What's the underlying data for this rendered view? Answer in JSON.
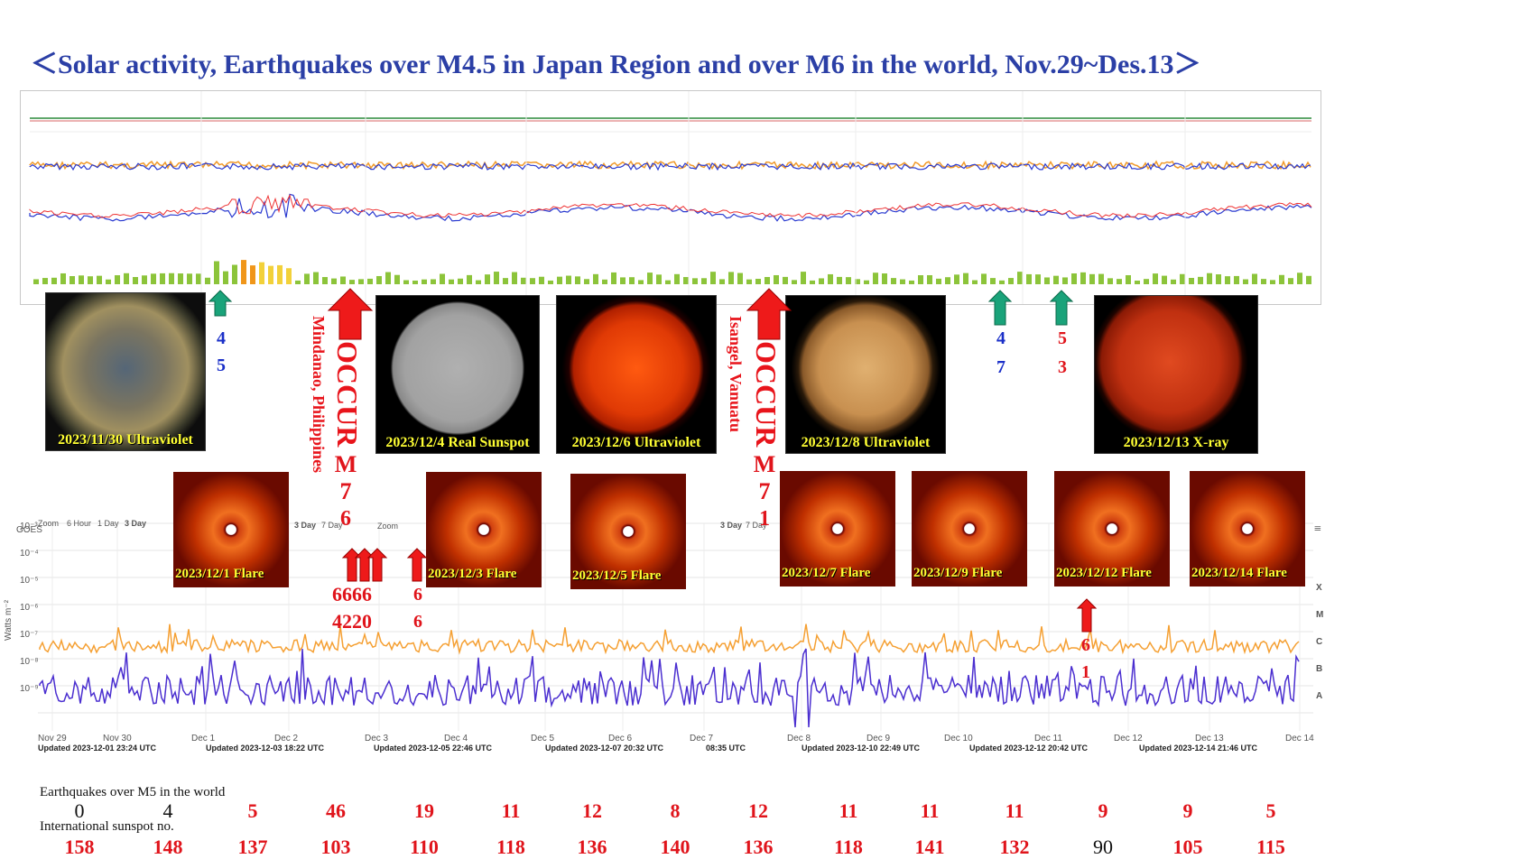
{
  "title": "＜Solar activity, Earthquakes over M4.5 in Japan Region and over M6 in the world, Nov.29~Des.13＞",
  "sun_images": [
    {
      "caption": "2023/11/30 Ultraviolet"
    },
    {
      "caption": "2023/12/4 Real Sunspot"
    },
    {
      "caption": "2023/12/6 Ultraviolet"
    },
    {
      "caption": "2023/12/8 Ultraviolet"
    },
    {
      "caption": "2023/12/13 X-ray"
    }
  ],
  "flare_images": [
    {
      "caption": "2023/12/1 Flare"
    },
    {
      "caption": "2023/12/3 Flare"
    },
    {
      "caption": "2023/12/5 Flare"
    },
    {
      "caption": "2023/12/7 Flare"
    },
    {
      "caption": "2023/12/9 Flare"
    },
    {
      "caption": "2023/12/12 Flare"
    },
    {
      "caption": "2023/12/14 Flare"
    }
  ],
  "events": {
    "occur_1": {
      "label": "OCCUR M7.6",
      "occur": "OCCUR",
      "mag": "M7.6",
      "m": "M",
      "d1": "7",
      "d2": "6",
      "location": "Mindanao, Philippines"
    },
    "occur_2": {
      "label": "OCCUR M7.1",
      "occur": "OCCUR",
      "mag": "M7.1",
      "m": "M",
      "d1": "7",
      "d2": "1",
      "location": "Isangel, Vanuatu"
    },
    "small_1": {
      "top": "4",
      "bottom": "5"
    },
    "small_2": {
      "top": "4",
      "bottom": "7"
    },
    "small_3": {
      "top": "5",
      "bottom": "3"
    },
    "bottom_group": {
      "top": "6666",
      "bottom": "4220"
    },
    "bottom_2": {
      "top": "6",
      "bottom": "6"
    },
    "bottom_3": {
      "top": "6",
      "bottom": "1"
    }
  },
  "chart_labels": {
    "y_axis": "Watts m⁻²",
    "y_ticks": [
      "10⁻³",
      "10⁻⁴",
      "10⁻⁵",
      "10⁻⁶",
      "10⁻⁷",
      "10⁻⁸",
      "10⁻⁹"
    ],
    "classes": [
      "X",
      "M",
      "C",
      "B",
      "A"
    ],
    "zoom_label": "Zoom",
    "zoom_options": [
      "6 Hour",
      "1 Day",
      "3 Day",
      "7 Day"
    ],
    "source_label": "GOES",
    "dates": [
      "Nov 29",
      "Nov 30",
      "Dec 1",
      "Dec 2",
      "Dec 3",
      "Dec 4",
      "Dec 5",
      "Dec 6",
      "Dec 7",
      "Dec 8",
      "Dec 9",
      "Dec 10",
      "Dec 11",
      "Dec 12",
      "Dec 13",
      "Dec 14"
    ],
    "updated": [
      "Updated 2023-12-01 23:24 UTC",
      "Updated 2023-12-03 18:22 UTC",
      "Updated 2023-12-05 22:46 UTC",
      "Updated 2023-12-07 20:32 UTC",
      "08:35 UTC",
      "Updated 2023-12-10 22:49 UTC",
      "Updated 2023-12-12 20:42 UTC",
      "Updated 2023-12-14 21:46 UTC"
    ]
  },
  "table": {
    "row1_label": "Earthquakes over M5 in the world",
    "row2_label": "International sunspot no.",
    "earthquakes": [
      "0",
      "4",
      "5",
      "46",
      "19",
      "11",
      "12",
      "8",
      "12",
      "11",
      "11",
      "11",
      "9",
      "9",
      "5"
    ],
    "sunspots": [
      "158",
      "148",
      "137",
      "103",
      "110",
      "118",
      "136",
      "140",
      "136",
      "118",
      "141",
      "132",
      "90",
      "105",
      "115"
    ]
  },
  "colors": {
    "title": "#2b3fa6",
    "red": "#e0141b",
    "green_arrow": "#1aa37a",
    "blue_num": "#1a2fc8",
    "xray_long": "#f5a033",
    "xray_short": "#4b2fd0"
  }
}
